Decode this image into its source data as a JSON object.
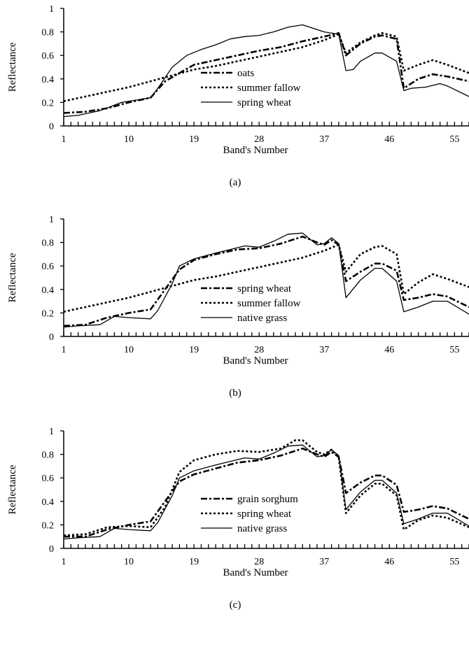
{
  "chart_data": [
    {
      "type": "line",
      "panel_label": "(a)",
      "xlabel": "Band's Number",
      "ylabel": "Reflectance",
      "xlim": [
        1,
        57
      ],
      "ylim": [
        0,
        1
      ],
      "x_ticks": [
        "1",
        "10",
        "19",
        "28",
        "37",
        "46",
        "55"
      ],
      "y_ticks": [
        "0",
        "0.2",
        "0.4",
        "0.6",
        "0.8",
        "1"
      ],
      "grid": false,
      "legend_position": "center-bottom",
      "series": [
        {
          "name": "oats",
          "style": "dash-dot",
          "points": [
            [
              1,
              0.11
            ],
            [
              4,
              0.12
            ],
            [
              7,
              0.15
            ],
            [
              10,
              0.2
            ],
            [
              13,
              0.24
            ],
            [
              15,
              0.38
            ],
            [
              17,
              0.45
            ],
            [
              19,
              0.52
            ],
            [
              22,
              0.56
            ],
            [
              25,
              0.6
            ],
            [
              28,
              0.64
            ],
            [
              31,
              0.67
            ],
            [
              34,
              0.72
            ],
            [
              37,
              0.76
            ],
            [
              39,
              0.79
            ],
            [
              40,
              0.6
            ],
            [
              42,
              0.7
            ],
            [
              44,
              0.76
            ],
            [
              45,
              0.77
            ],
            [
              47,
              0.74
            ],
            [
              48,
              0.32
            ],
            [
              50,
              0.4
            ],
            [
              52,
              0.44
            ],
            [
              54,
              0.42
            ],
            [
              57,
              0.38
            ]
          ]
        },
        {
          "name": "summer fallow",
          "style": "dotted",
          "points": [
            [
              1,
              0.21
            ],
            [
              4,
              0.25
            ],
            [
              7,
              0.29
            ],
            [
              10,
              0.33
            ],
            [
              13,
              0.38
            ],
            [
              16,
              0.43
            ],
            [
              19,
              0.48
            ],
            [
              22,
              0.51
            ],
            [
              25,
              0.55
            ],
            [
              28,
              0.59
            ],
            [
              31,
              0.63
            ],
            [
              34,
              0.67
            ],
            [
              37,
              0.73
            ],
            [
              39,
              0.78
            ],
            [
              40,
              0.62
            ],
            [
              42,
              0.71
            ],
            [
              44,
              0.77
            ],
            [
              45,
              0.79
            ],
            [
              47,
              0.76
            ],
            [
              48,
              0.47
            ],
            [
              50,
              0.52
            ],
            [
              52,
              0.56
            ],
            [
              54,
              0.52
            ],
            [
              57,
              0.45
            ]
          ]
        },
        {
          "name": "spring wheat",
          "style": "solid",
          "points": [
            [
              1,
              0.08
            ],
            [
              3,
              0.09
            ],
            [
              6,
              0.13
            ],
            [
              9,
              0.2
            ],
            [
              12,
              0.23
            ],
            [
              13,
              0.24
            ],
            [
              14,
              0.32
            ],
            [
              16,
              0.5
            ],
            [
              18,
              0.6
            ],
            [
              20,
              0.65
            ],
            [
              22,
              0.69
            ],
            [
              24,
              0.74
            ],
            [
              26,
              0.76
            ],
            [
              28,
              0.77
            ],
            [
              30,
              0.8
            ],
            [
              32,
              0.84
            ],
            [
              34,
              0.86
            ],
            [
              35,
              0.84
            ],
            [
              37,
              0.8
            ],
            [
              39,
              0.78
            ],
            [
              40,
              0.47
            ],
            [
              41,
              0.48
            ],
            [
              42,
              0.55
            ],
            [
              44,
              0.62
            ],
            [
              45,
              0.62
            ],
            [
              47,
              0.55
            ],
            [
              48,
              0.3
            ],
            [
              49,
              0.32
            ],
            [
              51,
              0.33
            ],
            [
              53,
              0.36
            ],
            [
              54,
              0.34
            ],
            [
              57,
              0.25
            ]
          ]
        }
      ]
    },
    {
      "type": "line",
      "panel_label": "(b)",
      "xlabel": "Band's Number",
      "ylabel": "Reflectance",
      "xlim": [
        1,
        57
      ],
      "ylim": [
        0,
        1
      ],
      "x_ticks": [
        "1",
        "10",
        "19",
        "28",
        "37",
        "46",
        "55"
      ],
      "y_ticks": [
        "0",
        "0.2",
        "0.4",
        "0.6",
        "0.8",
        "1"
      ],
      "grid": false,
      "legend_position": "center-bottom",
      "series": [
        {
          "name": "spring wheat",
          "style": "dash-dot",
          "points": [
            [
              1,
              0.09
            ],
            [
              4,
              0.1
            ],
            [
              7,
              0.16
            ],
            [
              10,
              0.2
            ],
            [
              13,
              0.23
            ],
            [
              15,
              0.4
            ],
            [
              17,
              0.57
            ],
            [
              19,
              0.65
            ],
            [
              22,
              0.7
            ],
            [
              25,
              0.74
            ],
            [
              28,
              0.75
            ],
            [
              31,
              0.79
            ],
            [
              34,
              0.85
            ],
            [
              36,
              0.8
            ],
            [
              37,
              0.78
            ],
            [
              38,
              0.82
            ],
            [
              39,
              0.78
            ],
            [
              40,
              0.47
            ],
            [
              42,
              0.55
            ],
            [
              44,
              0.62
            ],
            [
              45,
              0.62
            ],
            [
              47,
              0.56
            ],
            [
              48,
              0.31
            ],
            [
              50,
              0.33
            ],
            [
              52,
              0.36
            ],
            [
              54,
              0.34
            ],
            [
              57,
              0.25
            ]
          ]
        },
        {
          "name": "summer fallow",
          "style": "dotted",
          "points": [
            [
              1,
              0.21
            ],
            [
              4,
              0.25
            ],
            [
              7,
              0.29
            ],
            [
              10,
              0.33
            ],
            [
              13,
              0.38
            ],
            [
              16,
              0.43
            ],
            [
              19,
              0.48
            ],
            [
              22,
              0.51
            ],
            [
              25,
              0.55
            ],
            [
              28,
              0.59
            ],
            [
              31,
              0.63
            ],
            [
              34,
              0.67
            ],
            [
              37,
              0.73
            ],
            [
              39,
              0.78
            ],
            [
              40,
              0.55
            ],
            [
              42,
              0.7
            ],
            [
              44,
              0.76
            ],
            [
              45,
              0.77
            ],
            [
              47,
              0.7
            ],
            [
              48,
              0.36
            ],
            [
              50,
              0.46
            ],
            [
              52,
              0.53
            ],
            [
              54,
              0.49
            ],
            [
              57,
              0.42
            ]
          ]
        },
        {
          "name": "native grass",
          "style": "solid",
          "points": [
            [
              1,
              0.08
            ],
            [
              3,
              0.09
            ],
            [
              6,
              0.1
            ],
            [
              8,
              0.17
            ],
            [
              10,
              0.16
            ],
            [
              13,
              0.15
            ],
            [
              14,
              0.22
            ],
            [
              16,
              0.45
            ],
            [
              17,
              0.6
            ],
            [
              19,
              0.66
            ],
            [
              22,
              0.71
            ],
            [
              24,
              0.74
            ],
            [
              26,
              0.77
            ],
            [
              28,
              0.76
            ],
            [
              30,
              0.81
            ],
            [
              32,
              0.87
            ],
            [
              34,
              0.88
            ],
            [
              36,
              0.78
            ],
            [
              37,
              0.79
            ],
            [
              38,
              0.84
            ],
            [
              39,
              0.79
            ],
            [
              40,
              0.33
            ],
            [
              42,
              0.48
            ],
            [
              44,
              0.58
            ],
            [
              45,
              0.58
            ],
            [
              47,
              0.47
            ],
            [
              48,
              0.21
            ],
            [
              50,
              0.25
            ],
            [
              52,
              0.3
            ],
            [
              54,
              0.3
            ],
            [
              57,
              0.19
            ]
          ]
        }
      ]
    },
    {
      "type": "line",
      "panel_label": "(c)",
      "xlabel": "Band's Number",
      "ylabel": "Reflectance",
      "xlim": [
        1,
        57
      ],
      "ylim": [
        0,
        1
      ],
      "x_ticks": [
        "1",
        "10",
        "19",
        "28",
        "37",
        "46",
        "55"
      ],
      "y_ticks": [
        "0",
        "0.2",
        "0.4",
        "0.6",
        "0.8",
        "1"
      ],
      "grid": false,
      "legend_position": "center-bottom",
      "series": [
        {
          "name": "grain sorghum",
          "style": "dash-dot",
          "points": [
            [
              1,
              0.1
            ],
            [
              4,
              0.1
            ],
            [
              7,
              0.16
            ],
            [
              10,
              0.2
            ],
            [
              13,
              0.23
            ],
            [
              15,
              0.4
            ],
            [
              17,
              0.57
            ],
            [
              19,
              0.63
            ],
            [
              22,
              0.68
            ],
            [
              25,
              0.73
            ],
            [
              28,
              0.75
            ],
            [
              31,
              0.79
            ],
            [
              34,
              0.85
            ],
            [
              36,
              0.8
            ],
            [
              37,
              0.78
            ],
            [
              38,
              0.82
            ],
            [
              39,
              0.78
            ],
            [
              40,
              0.47
            ],
            [
              42,
              0.56
            ],
            [
              44,
              0.62
            ],
            [
              45,
              0.62
            ],
            [
              47,
              0.54
            ],
            [
              48,
              0.31
            ],
            [
              50,
              0.33
            ],
            [
              52,
              0.36
            ],
            [
              54,
              0.34
            ],
            [
              57,
              0.25
            ]
          ]
        },
        {
          "name": "spring wheat",
          "style": "dotted",
          "points": [
            [
              1,
              0.11
            ],
            [
              4,
              0.12
            ],
            [
              7,
              0.18
            ],
            [
              10,
              0.19
            ],
            [
              13,
              0.18
            ],
            [
              15,
              0.35
            ],
            [
              17,
              0.65
            ],
            [
              19,
              0.75
            ],
            [
              22,
              0.8
            ],
            [
              25,
              0.83
            ],
            [
              28,
              0.82
            ],
            [
              31,
              0.85
            ],
            [
              33,
              0.92
            ],
            [
              34,
              0.92
            ],
            [
              36,
              0.82
            ],
            [
              37,
              0.8
            ],
            [
              38,
              0.84
            ],
            [
              39,
              0.77
            ],
            [
              40,
              0.3
            ],
            [
              42,
              0.45
            ],
            [
              44,
              0.55
            ],
            [
              45,
              0.55
            ],
            [
              47,
              0.45
            ],
            [
              48,
              0.16
            ],
            [
              50,
              0.24
            ],
            [
              52,
              0.28
            ],
            [
              54,
              0.26
            ],
            [
              57,
              0.18
            ]
          ]
        },
        {
          "name": "native grass",
          "style": "solid",
          "points": [
            [
              1,
              0.08
            ],
            [
              3,
              0.09
            ],
            [
              6,
              0.1
            ],
            [
              8,
              0.17
            ],
            [
              10,
              0.16
            ],
            [
              13,
              0.15
            ],
            [
              14,
              0.22
            ],
            [
              16,
              0.45
            ],
            [
              17,
              0.6
            ],
            [
              19,
              0.66
            ],
            [
              22,
              0.71
            ],
            [
              24,
              0.74
            ],
            [
              26,
              0.77
            ],
            [
              28,
              0.76
            ],
            [
              30,
              0.81
            ],
            [
              32,
              0.87
            ],
            [
              34,
              0.88
            ],
            [
              36,
              0.78
            ],
            [
              37,
              0.79
            ],
            [
              38,
              0.84
            ],
            [
              39,
              0.79
            ],
            [
              40,
              0.33
            ],
            [
              42,
              0.48
            ],
            [
              44,
              0.58
            ],
            [
              45,
              0.58
            ],
            [
              47,
              0.47
            ],
            [
              48,
              0.21
            ],
            [
              50,
              0.25
            ],
            [
              52,
              0.3
            ],
            [
              54,
              0.3
            ],
            [
              57,
              0.19
            ]
          ]
        }
      ]
    }
  ]
}
